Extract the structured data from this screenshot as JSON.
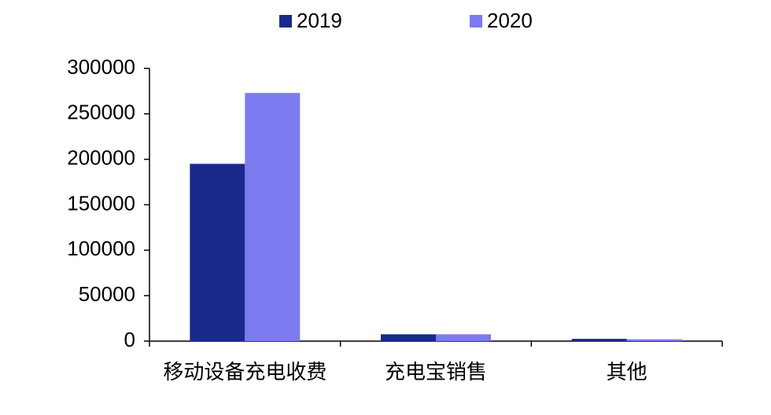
{
  "chart_data": {
    "type": "bar",
    "categories": [
      "移动设备充电收费",
      "充电宝销售",
      "其他"
    ],
    "series": [
      {
        "name": "2019",
        "color": "#1a2a8c",
        "values": [
          195000,
          7500,
          2500
        ]
      },
      {
        "name": "2020",
        "color": "#7b7bef",
        "values": [
          273000,
          7500,
          2000
        ]
      }
    ],
    "ylim": [
      0,
      300000
    ],
    "yticks": [
      0,
      50000,
      100000,
      150000,
      200000,
      250000,
      300000
    ],
    "legend": "top",
    "grid": false
  }
}
